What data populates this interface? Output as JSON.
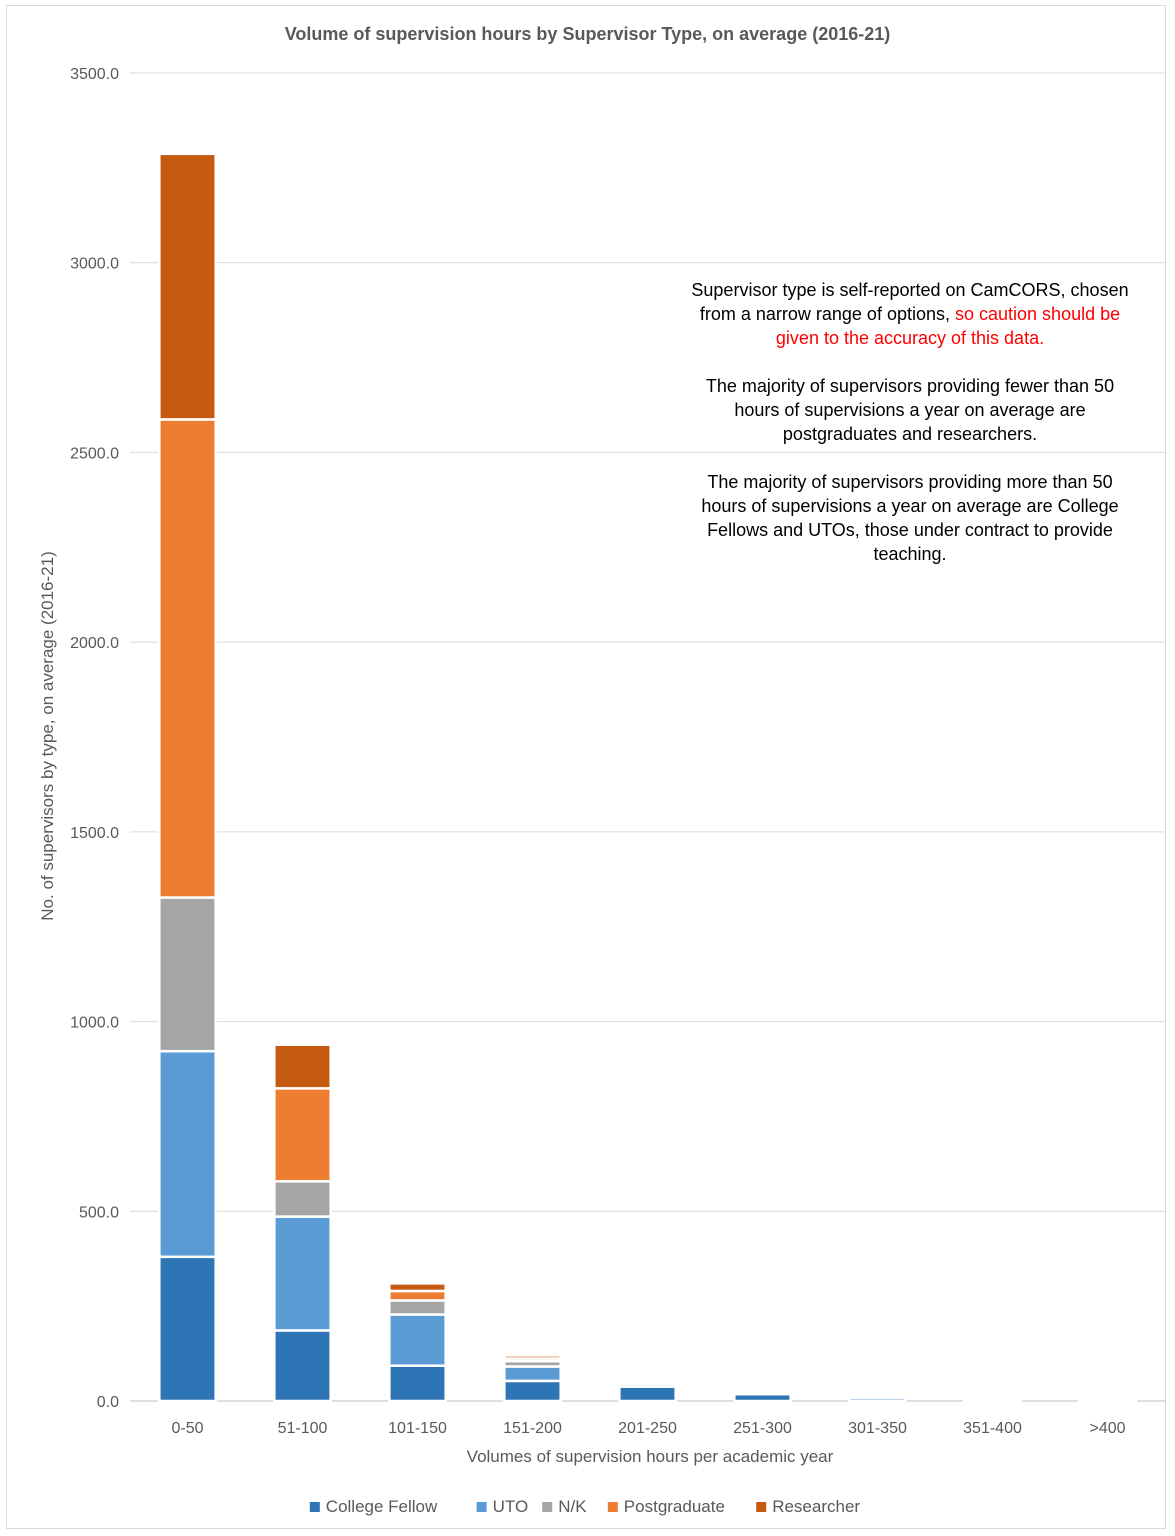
{
  "chart_data": {
    "type": "bar",
    "stacked": true,
    "title": "Volume of supervision hours by Supervisor Type, on average (2016-21)",
    "xlabel": "Volumes of supervision hours per academic year",
    "ylabel": "No. of supervisors by type, on average (2016-21)",
    "ylim": [
      0,
      3500
    ],
    "yticks": [
      "0.0",
      "500.0",
      "1000.0",
      "1500.0",
      "2000.0",
      "2500.0",
      "3000.0",
      "3500.0"
    ],
    "grid": true,
    "legend": "bottom",
    "categories": [
      "0-50",
      "51-100",
      "101-150",
      "151-200",
      "201-250",
      "251-300",
      "301-350",
      "351-400",
      ">400"
    ],
    "series": [
      {
        "name": "College Fellow",
        "color": "#2e75b6",
        "values": [
          380,
          186,
          93,
          53,
          38,
          18,
          8,
          3,
          3
        ]
      },
      {
        "name": "UTO",
        "color": "#5b9bd5",
        "values": [
          542,
          300,
          135,
          38,
          7,
          2,
          1,
          0.5,
          0.5
        ]
      },
      {
        "name": "N/K",
        "color": "#a5a5a5",
        "values": [
          405,
          93,
          37,
          14,
          4,
          1,
          0.5,
          0.2,
          0.2
        ]
      },
      {
        "name": "Postgraduate",
        "color": "#ed7d31",
        "values": [
          1260,
          245,
          25,
          7,
          1,
          0.5,
          0,
          0,
          0
        ]
      },
      {
        "name": "Researcher",
        "color": "#c55a11",
        "values": [
          700,
          115,
          20,
          8,
          1,
          0.5,
          0,
          0,
          0
        ]
      }
    ]
  },
  "note": {
    "p1_normal": "Supervisor type is self-reported on CamCORS, chosen from a narrow range of options, ",
    "p1_warning": "so caution should be given to the accuracy of this data.",
    "p2": "The majority of supervisors providing fewer than 50 hours of supervisions a year on average are postgraduates and researchers.",
    "p3": "The majority of supervisors providing more than 50 hours of supervisions a year on average are College Fellows and UTOs, those under contract to provide teaching."
  }
}
